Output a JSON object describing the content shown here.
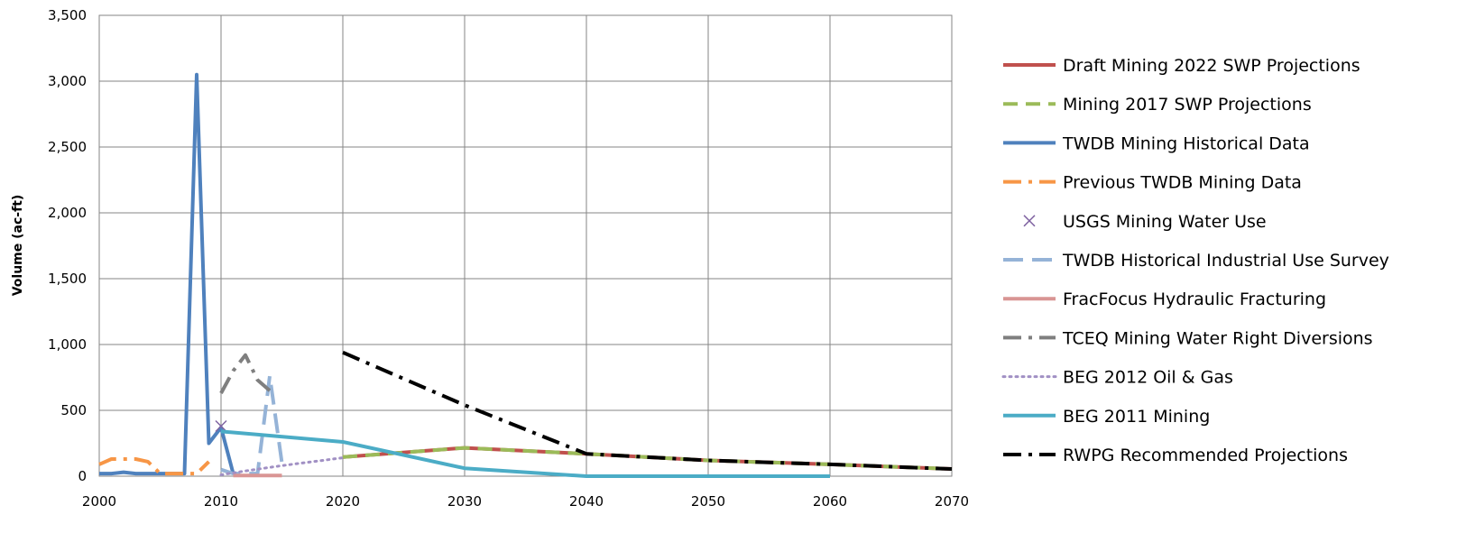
{
  "chart_data": {
    "type": "line",
    "title": "",
    "xlabel": "",
    "ylabel": "Volume (ac-ft)",
    "xlim": [
      2000,
      2070
    ],
    "ylim": [
      0,
      3500
    ],
    "x_ticks": [
      2000,
      2010,
      2020,
      2030,
      2040,
      2050,
      2060,
      2070
    ],
    "x_tick_labels": [
      "2000",
      "2010",
      "2020",
      "2030",
      "2040",
      "2050",
      "2060",
      "2070"
    ],
    "y_ticks": [
      0,
      500,
      1000,
      1500,
      2000,
      2500,
      3000,
      3500
    ],
    "y_tick_labels": [
      "0",
      "500",
      "1,000",
      "1,500",
      "2,000",
      "2,500",
      "3,000",
      "3,500"
    ],
    "grid": true,
    "legend_position": "right",
    "series": [
      {
        "name": "Draft Mining 2022 SWP Projections",
        "color": "#c0504d",
        "style": "solid",
        "x": [
          2020,
          2030,
          2040,
          2050,
          2060,
          2070
        ],
        "y": [
          145,
          215,
          170,
          120,
          90,
          55
        ]
      },
      {
        "name": "Mining 2017 SWP Projections",
        "color": "#9bbb59",
        "style": "dash",
        "x": [
          2020,
          2030,
          2040,
          2050,
          2060,
          2070
        ],
        "y": [
          145,
          215,
          170,
          120,
          90,
          55
        ]
      },
      {
        "name": "TWDB Mining Historical Data",
        "color": "#4f81bd",
        "style": "solid",
        "x": [
          2000,
          2001,
          2002,
          2003,
          2004,
          2005,
          2006,
          2007,
          2008,
          2009,
          2010,
          2011
        ],
        "y": [
          20,
          20,
          30,
          20,
          20,
          20,
          20,
          20,
          3050,
          250,
          370,
          20
        ]
      },
      {
        "name": "Previous TWDB Mining Data",
        "color": "#f79646",
        "style": "dashdot",
        "x": [
          2000,
          2001,
          2002,
          2003,
          2004,
          2005,
          2006,
          2007,
          2008,
          2009
        ],
        "y": [
          90,
          130,
          130,
          130,
          110,
          20,
          20,
          20,
          20,
          110
        ]
      },
      {
        "name": "USGS Mining Water Use",
        "color": "#8064a2",
        "style": "marker",
        "x": [
          2010
        ],
        "y": [
          380
        ]
      },
      {
        "name": "TWDB Historical Industrial Use Survey",
        "color": "#95b3d7",
        "style": "longdash",
        "x": [
          2010,
          2011,
          2012,
          2013,
          2014,
          2015
        ],
        "y": [
          50,
          20,
          20,
          20,
          760,
          100
        ]
      },
      {
        "name": "FracFocus Hydraulic Fracturing",
        "color": "#d99594",
        "style": "solid",
        "x": [
          2011,
          2012,
          2013,
          2014,
          2015
        ],
        "y": [
          5,
          5,
          5,
          5,
          5
        ]
      },
      {
        "name": "TCEQ Mining Water Right Diversions",
        "color": "#7f7f7f",
        "style": "dashdot",
        "x": [
          2010,
          2011,
          2012,
          2013,
          2014
        ],
        "y": [
          630,
          800,
          920,
          730,
          650
        ]
      },
      {
        "name": "BEG 2012 Oil & Gas",
        "color": "#a190c4",
        "style": "dot",
        "x": [
          2010,
          2012,
          2015,
          2020
        ],
        "y": [
          10,
          40,
          80,
          140
        ]
      },
      {
        "name": "BEG 2011 Mining",
        "color": "#4bacc6",
        "style": "solid",
        "x": [
          2010,
          2020,
          2030,
          2040,
          2050,
          2060
        ],
        "y": [
          340,
          260,
          60,
          0,
          0,
          0
        ]
      },
      {
        "name": "RWPG Recommended Projections",
        "color": "#000000",
        "style": "dashdot",
        "x": [
          2020,
          2030,
          2040,
          2050,
          2060,
          2070
        ],
        "y": [
          940,
          540,
          170,
          120,
          90,
          55
        ]
      }
    ]
  }
}
